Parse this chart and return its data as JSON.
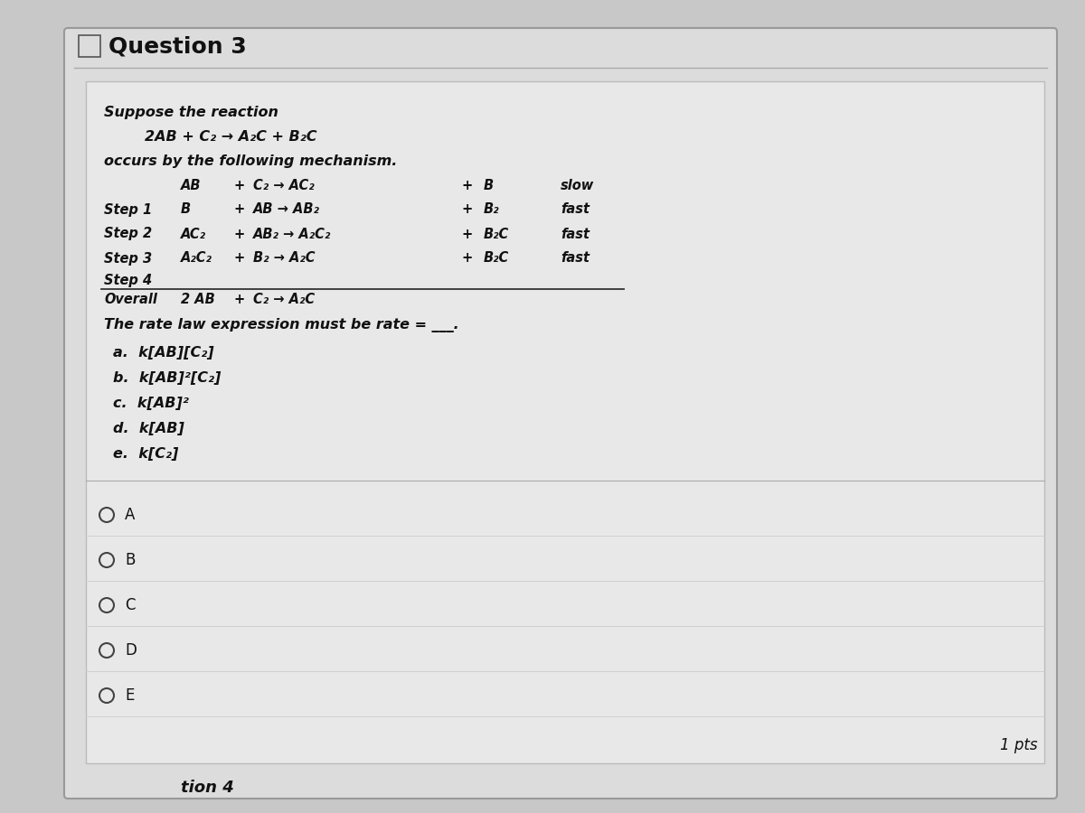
{
  "title": "Question 3",
  "bg_outer": "#c8c8c8",
  "bg_card": "#dcdcdc",
  "bg_inner": "#e6e6e6",
  "text_color": "#111111",
  "intro_line1": "Suppose the reaction",
  "intro_line2": "2AB + C₂ → A₂C + B₂C",
  "intro_line3": "occurs by the following mechanism.",
  "step_labels": [
    "Step 1",
    "Step 2",
    "Step 3",
    "Step 4",
    "Overall"
  ],
  "col_reactant": [
    "AB",
    "B",
    "AC₂",
    "A₂C₂",
    "2 AB"
  ],
  "col_plus1": [
    "+",
    "+",
    "+",
    "+",
    "+"
  ],
  "col_reaction": [
    "C₂ → AC₂",
    "AB → AB₂",
    "AB₂ → A₂C₂",
    "B₂ → A₂C",
    "C₂ → A₂C"
  ],
  "col_plus2": [
    "+",
    "",
    "+",
    "+",
    ""
  ],
  "col_product": [
    "B",
    "",
    "B₂",
    "B₂C",
    ""
  ],
  "col_speed": [
    "slow",
    "fast",
    "fast",
    "fast",
    ""
  ],
  "col_speed2": [
    "",
    "fast",
    "",
    "",
    ""
  ],
  "rate_question": "The rate law expression must be rate = ___.",
  "choices": [
    "a.  k[AB][C₂]",
    "b.  k[AB]²[C₂]",
    "c.  k[AB]²",
    "d.  k[AB]",
    "e.  k[C₂]"
  ],
  "radio_labels": [
    "A",
    "B",
    "C",
    "D",
    "E"
  ],
  "pts_label": "1 pts",
  "separator_color": "#aaaaaa",
  "line_color": "#555555"
}
